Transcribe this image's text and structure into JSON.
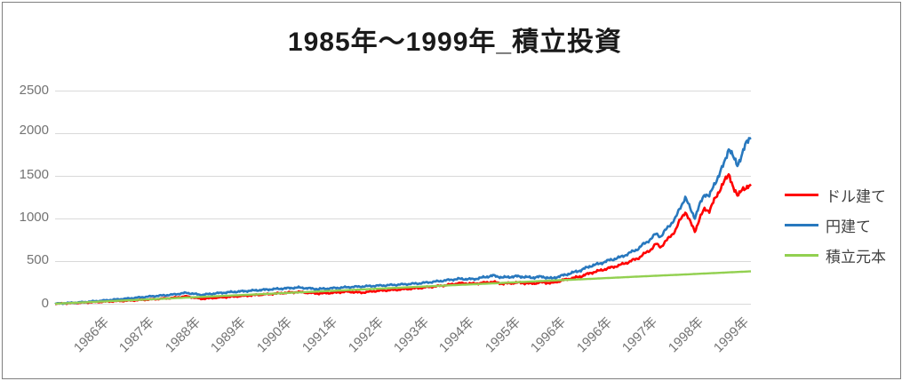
{
  "chart_data": {
    "type": "line",
    "title": "1985年～1999年_積立投資",
    "y_axis": {
      "min": 0,
      "max": 2500,
      "step": 500
    },
    "y_tick_labels": [
      "0",
      "500",
      "1000",
      "1500",
      "2000",
      "2500"
    ],
    "x_tick_labels": [
      "1986年",
      "1987年",
      "1988年",
      "1989年",
      "1990年",
      "1991年",
      "1992年",
      "1993年",
      "1994年",
      "1995年",
      "1996年",
      "1996年",
      "1997年",
      "1998年",
      "1999年"
    ],
    "x_range_years": [
      1985,
      1999.3
    ],
    "grid": true,
    "legend_position": "right",
    "colors": {
      "grid": "#d9d9d9",
      "axis_text": "#737373",
      "border": "#7f7f7f"
    },
    "series": [
      {
        "name": "ドル建て",
        "color": "#ff0000",
        "points": [
          [
            1985,
            0
          ],
          [
            1985.5,
            11
          ],
          [
            1986,
            24
          ],
          [
            1986.5,
            36
          ],
          [
            1987,
            52
          ],
          [
            1987.4,
            68
          ],
          [
            1987.7,
            86
          ],
          [
            1988,
            58
          ],
          [
            1988.3,
            70
          ],
          [
            1988.6,
            82
          ],
          [
            1989,
            98
          ],
          [
            1989.5,
            118
          ],
          [
            1990,
            138
          ],
          [
            1990.4,
            120
          ],
          [
            1990.7,
            128
          ],
          [
            1991,
            142
          ],
          [
            1991.3,
            130
          ],
          [
            1991.6,
            150
          ],
          [
            1992,
            163
          ],
          [
            1992.5,
            185
          ],
          [
            1993,
            215
          ],
          [
            1993.3,
            240
          ],
          [
            1993.6,
            235
          ],
          [
            1994,
            255
          ],
          [
            1994.2,
            235
          ],
          [
            1994.5,
            248
          ],
          [
            1994.8,
            236
          ],
          [
            1995,
            252
          ],
          [
            1995.2,
            242
          ],
          [
            1995.5,
            285
          ],
          [
            1995.8,
            320
          ],
          [
            1996,
            360
          ],
          [
            1996.2,
            390
          ],
          [
            1996.4,
            420
          ],
          [
            1996.6,
            452
          ],
          [
            1996.8,
            492
          ],
          [
            1997,
            540
          ],
          [
            1997.1,
            582
          ],
          [
            1997.25,
            640
          ],
          [
            1997.35,
            700
          ],
          [
            1997.45,
            668
          ],
          [
            1997.6,
            762
          ],
          [
            1997.75,
            862
          ],
          [
            1997.85,
            988
          ],
          [
            1997.95,
            1082
          ],
          [
            1998.05,
            958
          ],
          [
            1998.15,
            855
          ],
          [
            1998.25,
            1000
          ],
          [
            1998.35,
            1118
          ],
          [
            1998.45,
            1088
          ],
          [
            1998.55,
            1218
          ],
          [
            1998.65,
            1328
          ],
          [
            1998.75,
            1425
          ],
          [
            1998.85,
            1530
          ],
          [
            1998.95,
            1338
          ],
          [
            1999.02,
            1258
          ],
          [
            1999.12,
            1362
          ],
          [
            1999.2,
            1338
          ],
          [
            1999.3,
            1392
          ]
        ]
      },
      {
        "name": "円建て",
        "color": "#2878be",
        "points": [
          [
            1985,
            0
          ],
          [
            1985.5,
            16
          ],
          [
            1986,
            38
          ],
          [
            1986.5,
            62
          ],
          [
            1987,
            88
          ],
          [
            1987.4,
            106
          ],
          [
            1987.7,
            128
          ],
          [
            1988,
            104
          ],
          [
            1988.3,
            122
          ],
          [
            1988.6,
            136
          ],
          [
            1989,
            152
          ],
          [
            1989.5,
            172
          ],
          [
            1990,
            190
          ],
          [
            1990.4,
            172
          ],
          [
            1990.7,
            182
          ],
          [
            1991,
            194
          ],
          [
            1991.5,
            208
          ],
          [
            1992,
            222
          ],
          [
            1992.5,
            240
          ],
          [
            1993,
            272
          ],
          [
            1993.3,
            292
          ],
          [
            1993.6,
            288
          ],
          [
            1994,
            330
          ],
          [
            1994.2,
            308
          ],
          [
            1994.5,
            322
          ],
          [
            1994.8,
            306
          ],
          [
            1995,
            318
          ],
          [
            1995.2,
            296
          ],
          [
            1995.5,
            342
          ],
          [
            1995.8,
            392
          ],
          [
            1996,
            442
          ],
          [
            1996.2,
            472
          ],
          [
            1996.4,
            512
          ],
          [
            1996.6,
            542
          ],
          [
            1996.8,
            592
          ],
          [
            1997,
            652
          ],
          [
            1997.1,
            702
          ],
          [
            1997.25,
            762
          ],
          [
            1997.35,
            822
          ],
          [
            1997.45,
            788
          ],
          [
            1997.6,
            902
          ],
          [
            1997.75,
            1002
          ],
          [
            1997.85,
            1132
          ],
          [
            1997.95,
            1248
          ],
          [
            1998.05,
            1118
          ],
          [
            1998.15,
            1012
          ],
          [
            1998.25,
            1162
          ],
          [
            1998.35,
            1292
          ],
          [
            1998.45,
            1262
          ],
          [
            1998.55,
            1402
          ],
          [
            1998.65,
            1522
          ],
          [
            1998.75,
            1642
          ],
          [
            1998.85,
            1838
          ],
          [
            1998.95,
            1698
          ],
          [
            1999.02,
            1622
          ],
          [
            1999.12,
            1762
          ],
          [
            1999.2,
            1872
          ],
          [
            1999.3,
            1968
          ]
        ]
      },
      {
        "name": "積立元本",
        "color": "#92d050",
        "points": [
          [
            1985,
            0
          ],
          [
            1986,
            27
          ],
          [
            1987,
            53
          ],
          [
            1988,
            80
          ],
          [
            1989,
            106
          ],
          [
            1990,
            133
          ],
          [
            1991,
            159
          ],
          [
            1992,
            186
          ],
          [
            1993,
            213
          ],
          [
            1994,
            239
          ],
          [
            1995,
            266
          ],
          [
            1996,
            292
          ],
          [
            1997,
            319
          ],
          [
            1998,
            345
          ],
          [
            1999,
            372
          ],
          [
            1999.3,
            380
          ]
        ]
      }
    ]
  }
}
